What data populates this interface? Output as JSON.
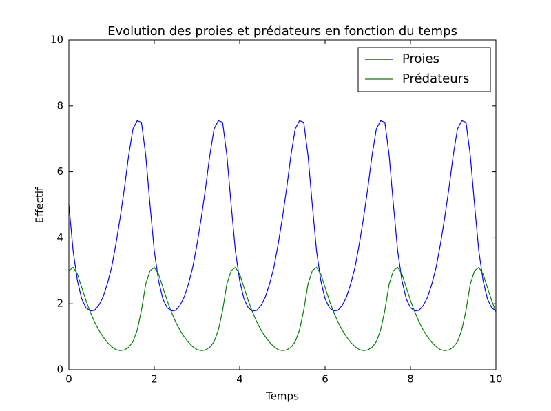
{
  "chart_data": {
    "type": "line",
    "title": "Evolution des proies et prédateurs en fonction du temps",
    "xlabel": "Temps",
    "ylabel": "Effectif",
    "x": [
      0,
      0.1,
      0.2,
      0.3,
      0.4,
      0.5,
      0.6,
      0.7,
      0.8,
      0.9,
      1,
      1.1,
      1.2,
      1.3,
      1.4,
      1.5,
      1.6,
      1.7,
      1.8,
      1.9,
      2,
      2.1,
      2.2,
      2.3,
      2.4,
      2.5,
      2.6,
      2.7,
      2.8,
      2.9,
      3,
      3.1,
      3.2,
      3.3,
      3.4,
      3.5,
      3.6,
      3.7,
      3.8,
      3.9,
      4,
      4.1,
      4.2,
      4.3,
      4.4,
      4.5,
      4.6,
      4.7,
      4.8,
      4.9,
      5,
      5.1,
      5.2,
      5.3,
      5.4,
      5.5,
      5.6,
      5.7,
      5.8,
      5.9,
      6,
      6.1,
      6.2,
      6.3,
      6.4,
      6.5,
      6.6,
      6.7,
      6.8,
      6.9,
      7,
      7.1,
      7.2,
      7.3,
      7.4,
      7.5,
      7.6,
      7.7,
      7.8,
      7.9,
      8,
      8.1,
      8.2,
      8.3,
      8.4,
      8.5,
      8.6,
      8.7,
      8.8,
      8.9,
      9,
      9.1,
      9.2,
      9.3,
      9.4,
      9.5,
      9.6,
      9.7,
      9.8,
      9.9,
      10
    ],
    "series": [
      {
        "name": "Proies",
        "color": "#0000ff",
        "values": [
          5.0,
          3.6,
          2.7,
          2.15,
          1.88,
          1.78,
          1.8,
          1.95,
          2.2,
          2.6,
          3.1,
          3.8,
          4.6,
          5.5,
          6.5,
          7.3,
          7.55,
          7.5,
          6.5,
          5.0,
          3.6,
          2.7,
          2.15,
          1.88,
          1.78,
          1.8,
          1.95,
          2.2,
          2.6,
          3.1,
          3.8,
          4.6,
          5.5,
          6.5,
          7.3,
          7.55,
          7.5,
          6.5,
          5.0,
          3.6,
          2.7,
          2.15,
          1.88,
          1.78,
          1.8,
          1.95,
          2.2,
          2.6,
          3.1,
          3.8,
          4.6,
          5.5,
          6.5,
          7.3,
          7.55,
          7.5,
          6.5,
          5.0,
          3.6,
          2.7,
          2.15,
          1.88,
          1.78,
          1.8,
          1.95,
          2.2,
          2.6,
          3.1,
          3.8,
          4.6,
          5.5,
          6.5,
          7.3,
          7.55,
          7.5,
          6.5,
          5.0,
          3.6,
          2.7,
          2.15,
          1.88,
          1.78,
          1.8,
          1.95,
          2.2,
          2.6,
          3.1,
          3.8,
          4.6,
          5.5,
          6.5,
          7.3,
          7.55,
          7.5,
          6.5,
          5.0,
          3.6,
          2.7,
          2.15,
          1.88,
          1.78
        ]
      },
      {
        "name": "Prédateurs",
        "color": "#008000",
        "values": [
          3.0,
          3.1,
          2.9,
          2.5,
          2.1,
          1.75,
          1.45,
          1.2,
          1.0,
          0.83,
          0.7,
          0.61,
          0.58,
          0.6,
          0.68,
          0.85,
          1.2,
          1.8,
          2.6,
          3.0,
          3.1,
          2.9,
          2.5,
          2.1,
          1.75,
          1.45,
          1.2,
          1.0,
          0.83,
          0.7,
          0.61,
          0.58,
          0.6,
          0.68,
          0.85,
          1.2,
          1.8,
          2.6,
          3.0,
          3.1,
          2.9,
          2.5,
          2.1,
          1.75,
          1.45,
          1.2,
          1.0,
          0.83,
          0.7,
          0.61,
          0.58,
          0.6,
          0.68,
          0.85,
          1.2,
          1.8,
          2.6,
          3.0,
          3.1,
          2.9,
          2.5,
          2.1,
          1.75,
          1.45,
          1.2,
          1.0,
          0.83,
          0.7,
          0.61,
          0.58,
          0.6,
          0.68,
          0.85,
          1.2,
          1.8,
          2.6,
          3.0,
          3.1,
          2.9,
          2.5,
          2.1,
          1.75,
          1.45,
          1.2,
          1.0,
          0.83,
          0.7,
          0.61,
          0.58,
          0.6,
          0.68,
          0.85,
          1.2,
          1.8,
          2.6,
          3.0,
          3.1,
          2.9,
          2.5,
          2.1,
          1.75
        ]
      }
    ],
    "xlim": [
      0,
      10
    ],
    "xticks": [
      0,
      2,
      4,
      6,
      8,
      10
    ],
    "ylim": [
      0,
      10
    ],
    "yticks": [
      0,
      2,
      4,
      6,
      8,
      10
    ],
    "grid": false,
    "legend": "upper right"
  }
}
